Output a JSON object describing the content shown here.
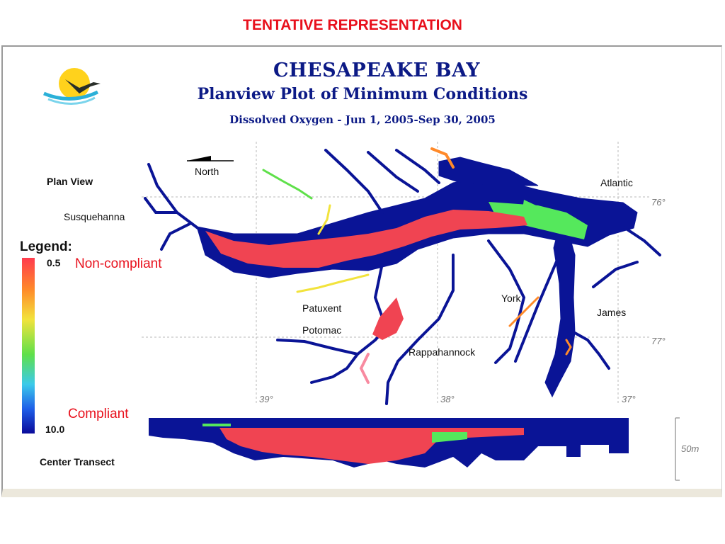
{
  "slide_title": "TENTATIVE REPRESENTATION",
  "header": {
    "line1": "CHESAPEAKE BAY",
    "line2": "Planview Plot of Minimum Conditions",
    "line3": "Dissolved Oxygen - Jun 1, 2005-Sep 30, 2005"
  },
  "labels": {
    "plan_view": "Plan View",
    "north": "North",
    "susquehanna": "Susquehanna",
    "atlantic": "Atlantic",
    "patuxent": "Patuxent",
    "potomac": "Potomac",
    "york": "York",
    "james": "James",
    "rappahannock": "Rappahannock",
    "center_transect": "Center Transect",
    "depth_scale": "50m"
  },
  "grid_labels": {
    "lon_76": "76°",
    "lon_77": "77°",
    "lat_39": "39°",
    "lat_38": "38°",
    "lat_37": "37°"
  },
  "legend": {
    "title": "Legend:",
    "top_value": "0.5",
    "bottom_value": "10.0",
    "top_annotation": "Non-compliant",
    "bottom_annotation": "Compliant",
    "colors": [
      "#ff3b4e",
      "#ff8a2a",
      "#f2e33c",
      "#5fe04a",
      "#3ccaea",
      "#1e5ee8",
      "#0a0a9a"
    ]
  },
  "colors": {
    "water": "#0a1496",
    "hypoxic": "#f04452",
    "moderate": "#55e85c",
    "title_red": "#e8101c",
    "header_blue": "#0c1a86"
  }
}
